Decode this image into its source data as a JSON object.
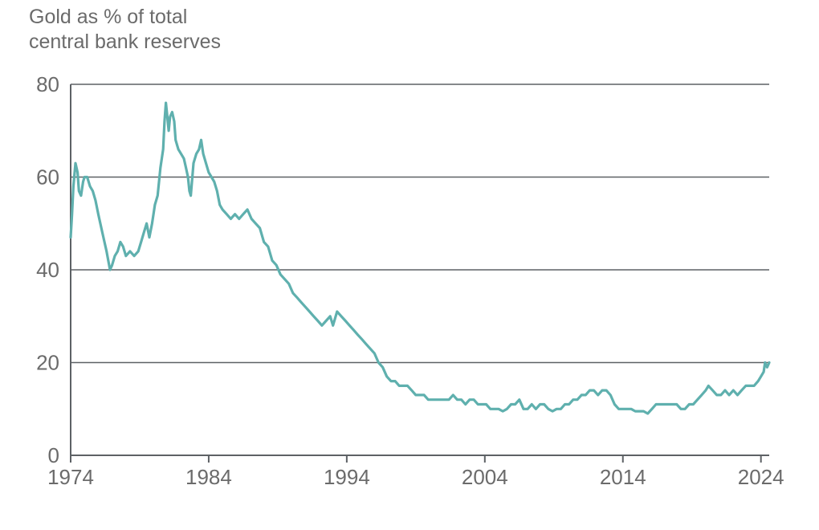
{
  "chart_data": {
    "type": "line",
    "title_lines": [
      "Gold as % of total",
      "central bank reserves"
    ],
    "xlabel": "",
    "ylabel": "",
    "x_ticks": [
      "1974",
      "1984",
      "1994",
      "2004",
      "2014",
      "2024"
    ],
    "y_ticks": [
      "0",
      "20",
      "40",
      "60",
      "80"
    ],
    "xlim": [
      1974,
      2024.6
    ],
    "ylim": [
      0,
      80
    ],
    "grid": true,
    "legend": "none",
    "colors": {
      "series": "#5fb0ae",
      "grid": "#5d6165",
      "text": "#6b6b6b"
    },
    "series": [
      {
        "values": [
          [
            1974.0,
            47
          ],
          [
            1974.1,
            52
          ],
          [
            1974.2,
            58
          ],
          [
            1974.35,
            63
          ],
          [
            1974.5,
            61
          ],
          [
            1974.6,
            57
          ],
          [
            1974.75,
            56
          ],
          [
            1974.9,
            59
          ],
          [
            1975.0,
            60
          ],
          [
            1975.2,
            60
          ],
          [
            1975.4,
            58
          ],
          [
            1975.6,
            57
          ],
          [
            1975.8,
            55
          ],
          [
            1976.0,
            52
          ],
          [
            1976.3,
            48
          ],
          [
            1976.6,
            44
          ],
          [
            1976.85,
            40
          ],
          [
            1977.0,
            41
          ],
          [
            1977.2,
            43
          ],
          [
            1977.4,
            44
          ],
          [
            1977.6,
            46
          ],
          [
            1977.8,
            45
          ],
          [
            1978.0,
            43
          ],
          [
            1978.3,
            44
          ],
          [
            1978.6,
            43
          ],
          [
            1978.9,
            44
          ],
          [
            1979.1,
            46
          ],
          [
            1979.3,
            48
          ],
          [
            1979.5,
            50
          ],
          [
            1979.7,
            47
          ],
          [
            1979.9,
            50
          ],
          [
            1980.1,
            54
          ],
          [
            1980.3,
            56
          ],
          [
            1980.5,
            62
          ],
          [
            1980.7,
            66
          ],
          [
            1980.8,
            72
          ],
          [
            1980.9,
            76
          ],
          [
            1981.0,
            73
          ],
          [
            1981.1,
            70
          ],
          [
            1981.2,
            73
          ],
          [
            1981.35,
            74
          ],
          [
            1981.5,
            72
          ],
          [
            1981.6,
            68
          ],
          [
            1981.8,
            66
          ],
          [
            1982.0,
            65
          ],
          [
            1982.2,
            64
          ],
          [
            1982.35,
            62
          ],
          [
            1982.5,
            60
          ],
          [
            1982.6,
            57
          ],
          [
            1982.7,
            56
          ],
          [
            1982.9,
            63
          ],
          [
            1983.1,
            65
          ],
          [
            1983.3,
            66
          ],
          [
            1983.45,
            68
          ],
          [
            1983.6,
            65
          ],
          [
            1983.8,
            63
          ],
          [
            1984.0,
            61
          ],
          [
            1984.2,
            60
          ],
          [
            1984.4,
            59
          ],
          [
            1984.6,
            57
          ],
          [
            1984.8,
            54
          ],
          [
            1985.0,
            53
          ],
          [
            1985.3,
            52
          ],
          [
            1985.6,
            51
          ],
          [
            1985.9,
            52
          ],
          [
            1986.2,
            51
          ],
          [
            1986.5,
            52
          ],
          [
            1986.8,
            53
          ],
          [
            1987.1,
            51
          ],
          [
            1987.4,
            50
          ],
          [
            1987.7,
            49
          ],
          [
            1988.0,
            46
          ],
          [
            1988.3,
            45
          ],
          [
            1988.6,
            42
          ],
          [
            1988.9,
            41
          ],
          [
            1989.2,
            39
          ],
          [
            1989.5,
            38
          ],
          [
            1989.8,
            37
          ],
          [
            1990.1,
            35
          ],
          [
            1990.4,
            34
          ],
          [
            1990.7,
            33
          ],
          [
            1991.0,
            32
          ],
          [
            1991.3,
            31
          ],
          [
            1991.6,
            30
          ],
          [
            1991.9,
            29
          ],
          [
            1992.2,
            28
          ],
          [
            1992.5,
            29
          ],
          [
            1992.8,
            30
          ],
          [
            1993.0,
            28
          ],
          [
            1993.3,
            31
          ],
          [
            1993.6,
            30
          ],
          [
            1993.9,
            29
          ],
          [
            1994.2,
            28
          ],
          [
            1994.5,
            27
          ],
          [
            1994.8,
            26
          ],
          [
            1995.1,
            25
          ],
          [
            1995.4,
            24
          ],
          [
            1995.7,
            23
          ],
          [
            1996.0,
            22
          ],
          [
            1996.3,
            20
          ],
          [
            1996.6,
            19
          ],
          [
            1996.9,
            17
          ],
          [
            1997.2,
            16
          ],
          [
            1997.5,
            16
          ],
          [
            1997.8,
            15
          ],
          [
            1998.1,
            15
          ],
          [
            1998.4,
            15
          ],
          [
            1998.7,
            14
          ],
          [
            1999.0,
            13
          ],
          [
            1999.3,
            13
          ],
          [
            1999.6,
            13
          ],
          [
            1999.9,
            12
          ],
          [
            2000.2,
            12
          ],
          [
            2000.5,
            12
          ],
          [
            2000.8,
            12
          ],
          [
            2001.1,
            12
          ],
          [
            2001.4,
            12
          ],
          [
            2001.7,
            13
          ],
          [
            2002.0,
            12
          ],
          [
            2002.3,
            12
          ],
          [
            2002.6,
            11
          ],
          [
            2002.9,
            12
          ],
          [
            2003.2,
            12
          ],
          [
            2003.5,
            11
          ],
          [
            2003.8,
            11
          ],
          [
            2004.1,
            11
          ],
          [
            2004.4,
            10
          ],
          [
            2004.7,
            10
          ],
          [
            2005.0,
            10
          ],
          [
            2005.3,
            9.5
          ],
          [
            2005.6,
            10
          ],
          [
            2005.9,
            11
          ],
          [
            2006.2,
            11
          ],
          [
            2006.5,
            12
          ],
          [
            2006.8,
            10
          ],
          [
            2007.1,
            10
          ],
          [
            2007.4,
            11
          ],
          [
            2007.7,
            10
          ],
          [
            2008.0,
            11
          ],
          [
            2008.3,
            11
          ],
          [
            2008.6,
            10
          ],
          [
            2008.9,
            9.5
          ],
          [
            2009.2,
            10
          ],
          [
            2009.5,
            10
          ],
          [
            2009.8,
            11
          ],
          [
            2010.1,
            11
          ],
          [
            2010.4,
            12
          ],
          [
            2010.7,
            12
          ],
          [
            2011.0,
            13
          ],
          [
            2011.3,
            13
          ],
          [
            2011.6,
            14
          ],
          [
            2011.9,
            14
          ],
          [
            2012.2,
            13
          ],
          [
            2012.5,
            14
          ],
          [
            2012.8,
            14
          ],
          [
            2013.1,
            13
          ],
          [
            2013.4,
            11
          ],
          [
            2013.7,
            10
          ],
          [
            2014.0,
            10
          ],
          [
            2014.3,
            10
          ],
          [
            2014.6,
            10
          ],
          [
            2014.9,
            9.5
          ],
          [
            2015.2,
            9.5
          ],
          [
            2015.5,
            9.5
          ],
          [
            2015.8,
            9
          ],
          [
            2016.1,
            10
          ],
          [
            2016.4,
            11
          ],
          [
            2016.7,
            11
          ],
          [
            2017.0,
            11
          ],
          [
            2017.3,
            11
          ],
          [
            2017.6,
            11
          ],
          [
            2017.9,
            11
          ],
          [
            2018.2,
            10
          ],
          [
            2018.5,
            10
          ],
          [
            2018.8,
            11
          ],
          [
            2019.1,
            11
          ],
          [
            2019.4,
            12
          ],
          [
            2019.7,
            13
          ],
          [
            2020.0,
            14
          ],
          [
            2020.2,
            15
          ],
          [
            2020.5,
            14
          ],
          [
            2020.8,
            13
          ],
          [
            2021.1,
            13
          ],
          [
            2021.4,
            14
          ],
          [
            2021.7,
            13
          ],
          [
            2022.0,
            14
          ],
          [
            2022.3,
            13
          ],
          [
            2022.6,
            14
          ],
          [
            2022.9,
            15
          ],
          [
            2023.2,
            15
          ],
          [
            2023.5,
            15
          ],
          [
            2023.8,
            16
          ],
          [
            2024.0,
            17
          ],
          [
            2024.2,
            18
          ],
          [
            2024.3,
            20
          ],
          [
            2024.45,
            19
          ],
          [
            2024.6,
            20
          ]
        ]
      }
    ]
  }
}
